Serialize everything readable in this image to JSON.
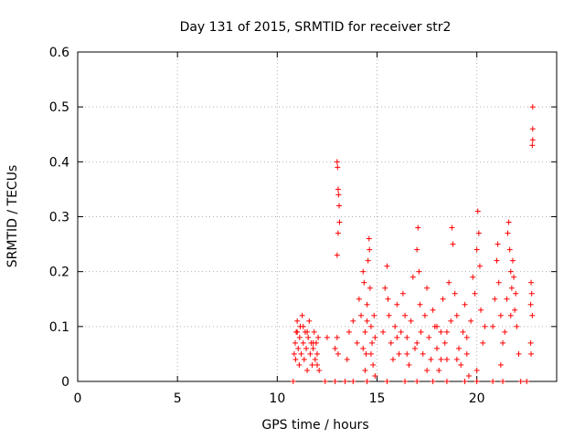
{
  "chart_data": {
    "type": "scatter",
    "title": "Day 131 of 2015, SRMTID for receiver str2",
    "xlabel": "GPS time / hours",
    "ylabel": "SRMTID / TECUs",
    "xlim": [
      0,
      24
    ],
    "ylim": [
      0,
      0.6
    ],
    "xticks": [
      0,
      5,
      10,
      15,
      20
    ],
    "yticks": [
      0,
      0.1,
      0.2,
      0.3,
      0.4,
      0.5,
      0.6
    ],
    "xtick_labels": [
      "0",
      "5",
      "10",
      "15",
      "20"
    ],
    "ytick_labels": [
      "0",
      "0.1",
      "0.2",
      "0.3",
      "0.4",
      "0.5",
      "0.6"
    ],
    "grid": true,
    "colors": {
      "series": "#ff0000",
      "grid": "#b0b0b0",
      "axis": "#000000"
    },
    "series": [
      {
        "name": "SRMTID",
        "marker": "plus",
        "points": [
          [
            10.8,
            0.0
          ],
          [
            10.85,
            0.05
          ],
          [
            10.9,
            0.07
          ],
          [
            10.92,
            0.04
          ],
          [
            10.95,
            0.09
          ],
          [
            11.0,
            0.11
          ],
          [
            11.05,
            0.06
          ],
          [
            11.1,
            0.03
          ],
          [
            11.12,
            0.08
          ],
          [
            11.15,
            0.1
          ],
          [
            11.2,
            0.05
          ],
          [
            11.25,
            0.12
          ],
          [
            11.3,
            0.07
          ],
          [
            11.35,
            0.04
          ],
          [
            11.4,
            0.09
          ],
          [
            11.45,
            0.06
          ],
          [
            11.5,
            0.02
          ],
          [
            11.55,
            0.08
          ],
          [
            11.6,
            0.11
          ],
          [
            11.65,
            0.05
          ],
          [
            11.7,
            0.07
          ],
          [
            11.75,
            0.03
          ],
          [
            11.8,
            0.06
          ],
          [
            11.85,
            0.09
          ],
          [
            11.9,
            0.04
          ],
          [
            11.95,
            0.07
          ],
          [
            12.0,
            0.05
          ],
          [
            12.05,
            0.08
          ],
          [
            12.1,
            0.02
          ],
          [
            11.0,
            0.09
          ],
          [
            11.3,
            0.1
          ],
          [
            11.5,
            0.09
          ],
          [
            11.8,
            0.07
          ],
          [
            12.0,
            0.03
          ],
          [
            12.5,
            0.08
          ],
          [
            12.9,
            0.06
          ],
          [
            13.0,
            0.4
          ],
          [
            13.02,
            0.39
          ],
          [
            13.05,
            0.35
          ],
          [
            13.07,
            0.34
          ],
          [
            13.1,
            0.32
          ],
          [
            13.12,
            0.29
          ],
          [
            13.05,
            0.27
          ],
          [
            13.0,
            0.23
          ],
          [
            13.0,
            0.08
          ],
          [
            13.05,
            0.05
          ],
          [
            13.5,
            0.04
          ],
          [
            13.6,
            0.09
          ],
          [
            13.8,
            0.11
          ],
          [
            14.0,
            0.07
          ],
          [
            14.1,
            0.15
          ],
          [
            14.2,
            0.12
          ],
          [
            14.3,
            0.2
          ],
          [
            14.35,
            0.18
          ],
          [
            14.4,
            0.09
          ],
          [
            14.45,
            0.05
          ],
          [
            14.5,
            0.14
          ],
          [
            14.55,
            0.22
          ],
          [
            14.6,
            0.26
          ],
          [
            14.62,
            0.24
          ],
          [
            14.65,
            0.17
          ],
          [
            14.7,
            0.1
          ],
          [
            14.75,
            0.07
          ],
          [
            14.8,
            0.03
          ],
          [
            14.85,
            0.12
          ],
          [
            14.9,
            0.08
          ],
          [
            14.3,
            0.06
          ],
          [
            14.4,
            0.02
          ],
          [
            14.5,
            0.11
          ],
          [
            14.7,
            0.05
          ],
          [
            14.9,
            0.01
          ],
          [
            15.3,
            0.09
          ],
          [
            15.4,
            0.17
          ],
          [
            15.5,
            0.21
          ],
          [
            15.55,
            0.15
          ],
          [
            15.6,
            0.12
          ],
          [
            15.7,
            0.07
          ],
          [
            15.8,
            0.04
          ],
          [
            15.9,
            0.1
          ],
          [
            16.0,
            0.14
          ],
          [
            16.1,
            0.05
          ],
          [
            16.2,
            0.09
          ],
          [
            16.3,
            0.16
          ],
          [
            16.4,
            0.12
          ],
          [
            16.5,
            0.08
          ],
          [
            16.6,
            0.03
          ],
          [
            16.7,
            0.11
          ],
          [
            16.8,
            0.19
          ],
          [
            16.9,
            0.06
          ],
          [
            17.0,
            0.24
          ],
          [
            17.05,
            0.28
          ],
          [
            17.1,
            0.2
          ],
          [
            17.15,
            0.14
          ],
          [
            17.2,
            0.09
          ],
          [
            17.3,
            0.05
          ],
          [
            17.4,
            0.12
          ],
          [
            17.5,
            0.17
          ],
          [
            17.6,
            0.08
          ],
          [
            17.7,
            0.04
          ],
          [
            17.8,
            0.13
          ],
          [
            17.9,
            0.1
          ],
          [
            18.0,
            0.06
          ],
          [
            18.1,
            0.02
          ],
          [
            18.2,
            0.09
          ],
          [
            18.3,
            0.15
          ],
          [
            18.4,
            0.07
          ],
          [
            18.5,
            0.04
          ],
          [
            18.6,
            0.18
          ],
          [
            18.7,
            0.11
          ],
          [
            18.75,
            0.28
          ],
          [
            18.8,
            0.25
          ],
          [
            18.9,
            0.16
          ],
          [
            19.0,
            0.12
          ],
          [
            19.1,
            0.06
          ],
          [
            19.2,
            0.03
          ],
          [
            19.3,
            0.09
          ],
          [
            19.4,
            0.14
          ],
          [
            19.5,
            0.08
          ],
          [
            19.6,
            0.01
          ],
          [
            19.7,
            0.11
          ],
          [
            19.8,
            0.19
          ],
          [
            19.9,
            0.16
          ],
          [
            20.0,
            0.24
          ],
          [
            20.05,
            0.31
          ],
          [
            20.1,
            0.27
          ],
          [
            20.15,
            0.21
          ],
          [
            20.2,
            0.13
          ],
          [
            20.3,
            0.07
          ],
          [
            20.4,
            0.1
          ],
          [
            16.5,
            0.05
          ],
          [
            17.5,
            0.02
          ],
          [
            18.0,
            0.1
          ],
          [
            18.5,
            0.09
          ],
          [
            19.0,
            0.04
          ],
          [
            19.5,
            0.05
          ],
          [
            20.0,
            0.02
          ],
          [
            16.0,
            0.08
          ],
          [
            17.0,
            0.07
          ],
          [
            18.2,
            0.04
          ],
          [
            20.8,
            0.1
          ],
          [
            20.9,
            0.15
          ],
          [
            21.0,
            0.22
          ],
          [
            21.05,
            0.25
          ],
          [
            21.1,
            0.18
          ],
          [
            21.2,
            0.12
          ],
          [
            21.3,
            0.07
          ],
          [
            21.4,
            0.09
          ],
          [
            21.5,
            0.15
          ],
          [
            21.55,
            0.27
          ],
          [
            21.6,
            0.29
          ],
          [
            21.65,
            0.24
          ],
          [
            21.7,
            0.2
          ],
          [
            21.75,
            0.17
          ],
          [
            21.8,
            0.22
          ],
          [
            21.85,
            0.19
          ],
          [
            21.9,
            0.13
          ],
          [
            21.95,
            0.16
          ],
          [
            22.0,
            0.1
          ],
          [
            22.1,
            0.05
          ],
          [
            21.2,
            0.03
          ],
          [
            21.7,
            0.12
          ],
          [
            22.7,
            0.14
          ],
          [
            22.72,
            0.18
          ],
          [
            22.75,
            0.16
          ],
          [
            22.78,
            0.12
          ],
          [
            22.7,
            0.07
          ],
          [
            22.72,
            0.05
          ],
          [
            22.8,
            0.44
          ],
          [
            22.8,
            0.46
          ],
          [
            22.8,
            0.5
          ],
          [
            22.78,
            0.43
          ],
          [
            12.4,
            0.0
          ],
          [
            12.9,
            0.0
          ],
          [
            13.4,
            0.0
          ],
          [
            13.8,
            0.0
          ],
          [
            14.5,
            0.0
          ],
          [
            15.5,
            0.0
          ],
          [
            16.4,
            0.0
          ],
          [
            17.0,
            0.0
          ],
          [
            17.8,
            0.0
          ],
          [
            18.5,
            0.0
          ],
          [
            19.4,
            0.0
          ],
          [
            20.0,
            0.0
          ],
          [
            20.8,
            0.0
          ],
          [
            21.3,
            0.0
          ],
          [
            22.2,
            0.0
          ],
          [
            22.5,
            0.0
          ]
        ]
      }
    ]
  }
}
